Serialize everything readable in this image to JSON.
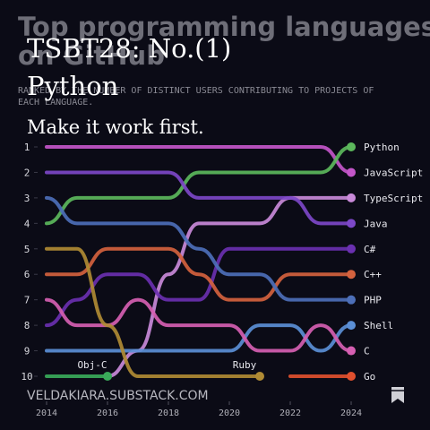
{
  "overlay": {
    "heading": [
      "TSBT28: No.(1)",
      "Python"
    ],
    "tagline": "Make it work first.",
    "footer": "VELDAKIARA.SUBSTACK.COM"
  },
  "chart_data": {
    "type": "line",
    "title": [
      "Top programming languages",
      "on GitHub"
    ],
    "subtitle": [
      "RANKED BY THE NUMBER OF DISTINCT USERS CONTRIBUTING TO PROJECTS OF",
      "EACH LANGUAGE."
    ],
    "x": [
      2014,
      2015,
      2016,
      2017,
      2018,
      2019,
      2020,
      2021,
      2022,
      2023,
      2024
    ],
    "xlim": [
      2014,
      2024
    ],
    "xticks": [
      2014,
      2016,
      2018,
      2020,
      2022,
      2024
    ],
    "ylim": [
      1,
      10
    ],
    "yticks": [
      1,
      2,
      3,
      4,
      5,
      6,
      7,
      8,
      9,
      10
    ],
    "y_inverted": true,
    "series": [
      {
        "name": "JavaScript",
        "color": "#c356c9",
        "values": [
          1,
          1,
          1,
          1,
          1,
          1,
          1,
          1,
          1,
          1,
          2
        ]
      },
      {
        "name": "Python",
        "color": "#5cb85c",
        "values": [
          4,
          3,
          3,
          3,
          3,
          2,
          2,
          2,
          2,
          2,
          1
        ]
      },
      {
        "name": "TypeScript",
        "color": "#c98ad9",
        "values": [
          null,
          null,
          10,
          9,
          6,
          4,
          4,
          4,
          3,
          3,
          3
        ]
      },
      {
        "name": "Java",
        "color": "#7d48c8",
        "values": [
          2,
          2,
          2,
          2,
          2,
          3,
          3,
          3,
          3,
          4,
          4
        ]
      },
      {
        "name": "C#",
        "color": "#6a30b0",
        "values": [
          8,
          7,
          6,
          6,
          7,
          7,
          5,
          5,
          5,
          5,
          5
        ]
      },
      {
        "name": "C++",
        "color": "#d4623e",
        "values": [
          6,
          6,
          5,
          5,
          5,
          6,
          7,
          7,
          6,
          6,
          6
        ]
      },
      {
        "name": "PHP",
        "color": "#4d6fb8",
        "values": [
          3,
          4,
          4,
          4,
          4,
          5,
          6,
          6,
          7,
          7,
          7
        ]
      },
      {
        "name": "Shell",
        "color": "#5b8fd6",
        "values": [
          9,
          9,
          9,
          9,
          9,
          9,
          9,
          8,
          8,
          9,
          8
        ]
      },
      {
        "name": "C",
        "color": "#d65fb2",
        "values": [
          7,
          8,
          8,
          7,
          8,
          8,
          8,
          9,
          9,
          8,
          9
        ]
      },
      {
        "name": "Go",
        "color": "#e0502e",
        "values": [
          null,
          null,
          null,
          null,
          null,
          null,
          null,
          null,
          10,
          10,
          10
        ]
      },
      {
        "name": "Ruby",
        "color": "#b08b34",
        "values": [
          5,
          5,
          8,
          10,
          10,
          10,
          10,
          10,
          null,
          null,
          null
        ]
      },
      {
        "name": "Obj-C",
        "color": "#3aaa5a",
        "values": [
          10,
          10,
          10,
          null,
          null,
          null,
          null,
          null,
          null,
          null,
          null
        ]
      }
    ]
  }
}
